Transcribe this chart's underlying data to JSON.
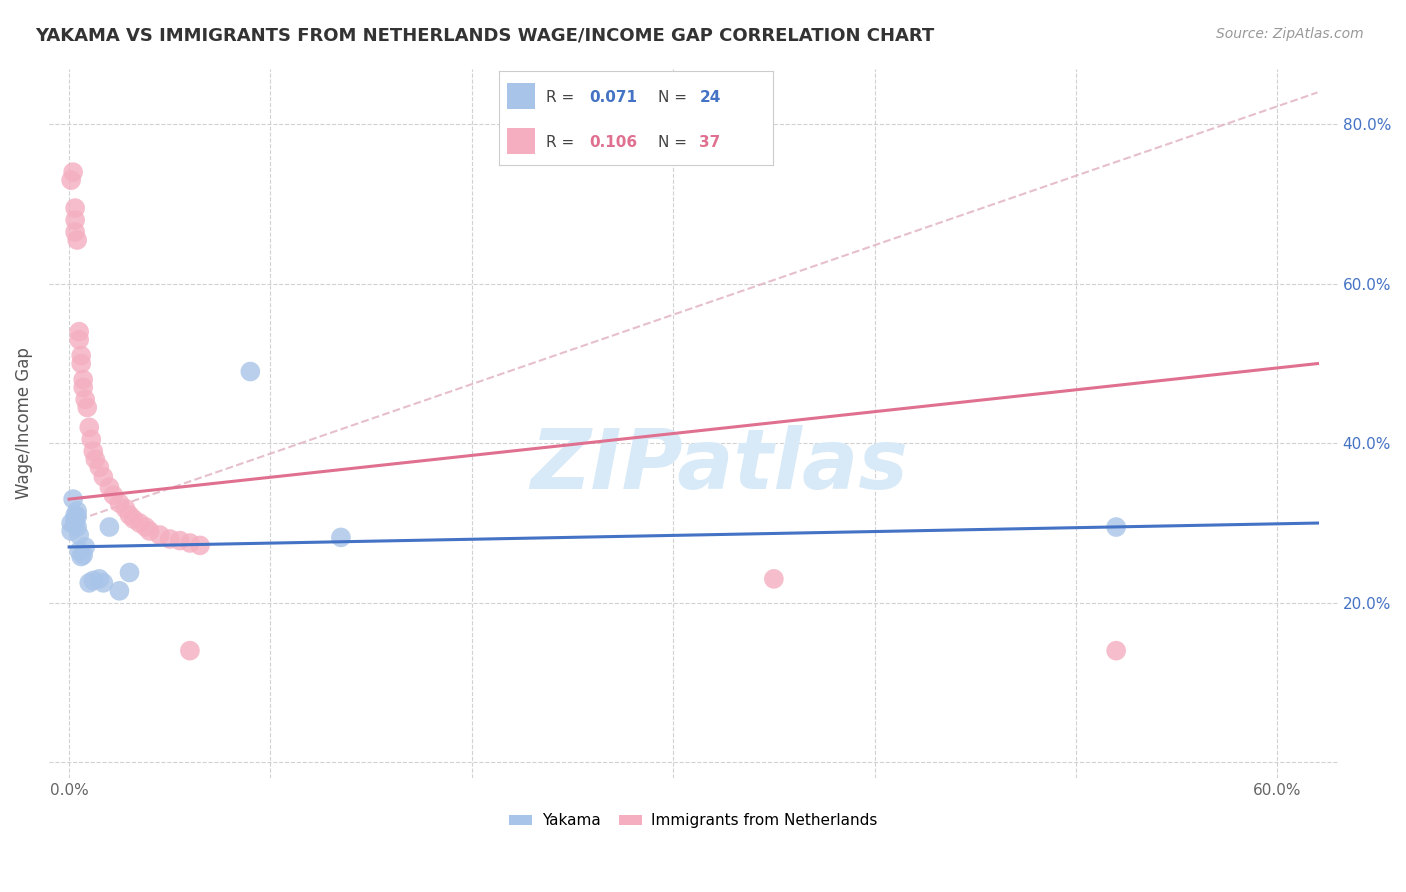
{
  "title": "YAKAMA VS IMMIGRANTS FROM NETHERLANDS WAGE/INCOME GAP CORRELATION CHART",
  "source": "Source: ZipAtlas.com",
  "ylabel": "Wage/Income Gap",
  "xlim": [
    -0.01,
    0.63
  ],
  "ylim": [
    -0.02,
    0.87
  ],
  "x_tick_positions": [
    0.0,
    0.1,
    0.2,
    0.3,
    0.4,
    0.5,
    0.6
  ],
  "x_tick_labels": [
    "0.0%",
    "",
    "",
    "",
    "",
    "",
    "60.0%"
  ],
  "y_tick_positions": [
    0.0,
    0.2,
    0.4,
    0.6,
    0.8
  ],
  "y_tick_labels_right": [
    "",
    "20.0%",
    "40.0%",
    "60.0%",
    "80.0%"
  ],
  "blue_color": "#a8c4e8",
  "pink_color": "#f4aec0",
  "blue_line_color": "#4472c4",
  "pink_line_color": "#e07090",
  "pink_dash_color": "#e0b0c0",
  "watermark_text": "ZIPatlas",
  "watermark_color": "#d8eaf8",
  "legend_r1": "R = 0.071",
  "legend_n1": "N = 24",
  "legend_r2": "R = 0.106",
  "legend_n2": "N = 37",
  "legend_text_color": "#333333",
  "legend_highlight_color1": "#4472c4",
  "legend_highlight_color2": "#e07090",
  "yakama_points": [
    [
      0.001,
      0.3
    ],
    [
      0.001,
      0.29
    ],
    [
      0.002,
      0.33
    ],
    [
      0.003,
      0.31
    ],
    [
      0.003,
      0.305
    ],
    [
      0.003,
      0.3
    ],
    [
      0.004,
      0.315
    ],
    [
      0.004,
      0.308
    ],
    [
      0.004,
      0.295
    ],
    [
      0.005,
      0.285
    ],
    [
      0.005,
      0.265
    ],
    [
      0.006,
      0.258
    ],
    [
      0.007,
      0.26
    ],
    [
      0.008,
      0.27
    ],
    [
      0.01,
      0.225
    ],
    [
      0.012,
      0.228
    ],
    [
      0.015,
      0.23
    ],
    [
      0.017,
      0.225
    ],
    [
      0.02,
      0.295
    ],
    [
      0.025,
      0.215
    ],
    [
      0.03,
      0.238
    ],
    [
      0.09,
      0.49
    ],
    [
      0.135,
      0.282
    ],
    [
      0.52,
      0.295
    ]
  ],
  "netherlands_points": [
    [
      0.001,
      0.73
    ],
    [
      0.002,
      0.74
    ],
    [
      0.003,
      0.695
    ],
    [
      0.003,
      0.68
    ],
    [
      0.003,
      0.665
    ],
    [
      0.004,
      0.655
    ],
    [
      0.005,
      0.54
    ],
    [
      0.005,
      0.53
    ],
    [
      0.006,
      0.51
    ],
    [
      0.006,
      0.5
    ],
    [
      0.007,
      0.48
    ],
    [
      0.007,
      0.47
    ],
    [
      0.008,
      0.455
    ],
    [
      0.009,
      0.445
    ],
    [
      0.01,
      0.42
    ],
    [
      0.011,
      0.405
    ],
    [
      0.012,
      0.39
    ],
    [
      0.013,
      0.38
    ],
    [
      0.015,
      0.37
    ],
    [
      0.017,
      0.358
    ],
    [
      0.02,
      0.345
    ],
    [
      0.022,
      0.335
    ],
    [
      0.025,
      0.325
    ],
    [
      0.028,
      0.318
    ],
    [
      0.03,
      0.31
    ],
    [
      0.032,
      0.305
    ],
    [
      0.035,
      0.3
    ],
    [
      0.038,
      0.295
    ],
    [
      0.04,
      0.29
    ],
    [
      0.045,
      0.285
    ],
    [
      0.05,
      0.28
    ],
    [
      0.055,
      0.278
    ],
    [
      0.06,
      0.275
    ],
    [
      0.065,
      0.272
    ],
    [
      0.06,
      0.14
    ],
    [
      0.35,
      0.23
    ],
    [
      0.52,
      0.14
    ]
  ],
  "yakama_trend_x": [
    0.0,
    0.62
  ],
  "yakama_trend_y": [
    0.27,
    0.3
  ],
  "pink_solid_trend_x": [
    0.0,
    0.62
  ],
  "pink_solid_trend_y": [
    0.33,
    0.5
  ],
  "pink_dash_trend_x": [
    0.0,
    0.62
  ],
  "pink_dash_trend_y": [
    0.3,
    0.84
  ]
}
